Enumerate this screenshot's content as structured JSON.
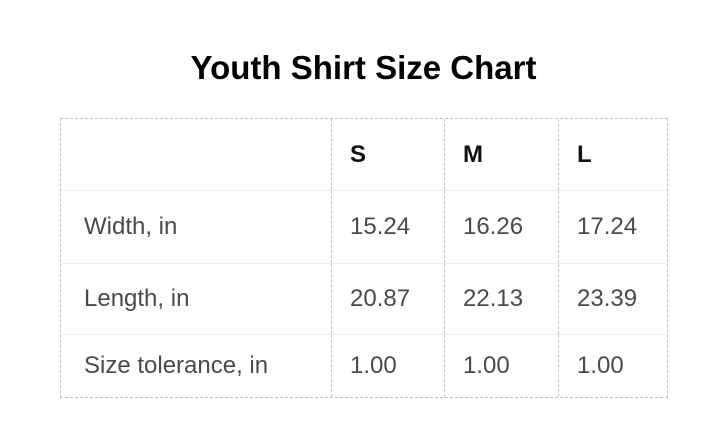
{
  "title": "Youth Shirt Size Chart",
  "chart_data": {
    "type": "table",
    "title": "Youth Shirt Size Chart",
    "columns": [
      "",
      "S",
      "M",
      "L"
    ],
    "rows": [
      {
        "label": "Width, in",
        "values": [
          "15.24",
          "16.26",
          "17.24"
        ]
      },
      {
        "label": "Length, in",
        "values": [
          "20.87",
          "22.13",
          "23.39"
        ]
      },
      {
        "label": "Size tolerance, in",
        "values": [
          "1.00",
          "1.00",
          "1.00"
        ]
      }
    ],
    "layout": {
      "border_style": "dashed outer border and dashed column separators, light solid row separators",
      "header_position": "top row, bold"
    }
  },
  "colors": {
    "background": "#ffffff",
    "title_text": "#000000",
    "header_text": "#111111",
    "body_text": "#4a4a4a",
    "dashed_border": "#c2c2c2",
    "row_separator": "#ededed"
  }
}
